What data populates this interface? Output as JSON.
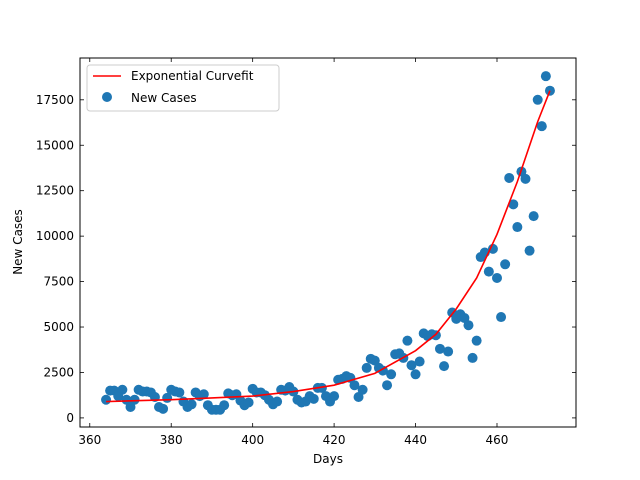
{
  "chart_data": {
    "type": "scatter",
    "title": "",
    "xlabel": "Days",
    "ylabel": "New Cases",
    "xlim": [
      357.6,
      479.4
    ],
    "ylim": [
      -500,
      19800
    ],
    "xticks": [
      360,
      380,
      400,
      420,
      440,
      460
    ],
    "yticks": [
      0,
      2500,
      5000,
      7500,
      10000,
      12500,
      15000,
      17500
    ],
    "ytick_labels": [
      "0",
      "2500",
      "5000",
      "7500",
      "10000",
      "12500",
      "15000",
      "17500"
    ],
    "grid": false,
    "legend_position": "top-left",
    "series": [
      {
        "name": "Exponential Curvefit",
        "kind": "line",
        "color": "#ff0000",
        "x": [
          364,
          380,
          390,
          400,
          410,
          420,
          430,
          440,
          445,
          450,
          455,
          460,
          465,
          470,
          473
        ],
        "y": [
          900,
          1000,
          1100,
          1200,
          1450,
          1800,
          2450,
          3700,
          4600,
          6000,
          7700,
          10100,
          13000,
          16300,
          18000
        ]
      },
      {
        "name": "New Cases",
        "kind": "scatter",
        "color": "#1f77b4",
        "points": [
          [
            364,
            1000
          ],
          [
            365,
            1500
          ],
          [
            366,
            1500
          ],
          [
            367,
            1200
          ],
          [
            368,
            1550
          ],
          [
            369,
            1000
          ],
          [
            370,
            600
          ],
          [
            371,
            1000
          ],
          [
            372,
            1550
          ],
          [
            373,
            1450
          ],
          [
            374,
            1450
          ],
          [
            375,
            1400
          ],
          [
            376,
            1150
          ],
          [
            377,
            600
          ],
          [
            378,
            500
          ],
          [
            379,
            1100
          ],
          [
            380,
            1550
          ],
          [
            381,
            1450
          ],
          [
            382,
            1400
          ],
          [
            383,
            900
          ],
          [
            384,
            600
          ],
          [
            385,
            750
          ],
          [
            386,
            1400
          ],
          [
            387,
            1200
          ],
          [
            388,
            1300
          ],
          [
            389,
            700
          ],
          [
            390,
            450
          ],
          [
            391,
            450
          ],
          [
            392,
            450
          ],
          [
            393,
            700
          ],
          [
            394,
            1350
          ],
          [
            395,
            1250
          ],
          [
            396,
            1300
          ],
          [
            397,
            950
          ],
          [
            398,
            700
          ],
          [
            399,
            850
          ],
          [
            400,
            1600
          ],
          [
            401,
            1400
          ],
          [
            402,
            1400
          ],
          [
            403,
            1250
          ],
          [
            404,
            1000
          ],
          [
            405,
            750
          ],
          [
            406,
            900
          ],
          [
            407,
            1550
          ],
          [
            408,
            1500
          ],
          [
            409,
            1700
          ],
          [
            410,
            1450
          ],
          [
            411,
            1000
          ],
          [
            412,
            850
          ],
          [
            413,
            900
          ],
          [
            414,
            1200
          ],
          [
            415,
            1050
          ],
          [
            416,
            1650
          ],
          [
            417,
            1650
          ],
          [
            418,
            1200
          ],
          [
            419,
            900
          ],
          [
            420,
            1200
          ],
          [
            421,
            2100
          ],
          [
            422,
            2150
          ],
          [
            423,
            2300
          ],
          [
            424,
            2200
          ],
          [
            425,
            1800
          ],
          [
            426,
            1150
          ],
          [
            427,
            1550
          ],
          [
            428,
            2750
          ],
          [
            429,
            3250
          ],
          [
            430,
            3150
          ],
          [
            431,
            2750
          ],
          [
            432,
            2600
          ],
          [
            433,
            1800
          ],
          [
            434,
            2400
          ],
          [
            435,
            3500
          ],
          [
            436,
            3550
          ],
          [
            437,
            3300
          ],
          [
            438,
            4250
          ],
          [
            439,
            2900
          ],
          [
            440,
            2400
          ],
          [
            441,
            3100
          ],
          [
            442,
            4650
          ],
          [
            443,
            4500
          ],
          [
            444,
            4600
          ],
          [
            445,
            4550
          ],
          [
            446,
            3800
          ],
          [
            447,
            2850
          ],
          [
            448,
            3650
          ],
          [
            449,
            5800
          ],
          [
            450,
            5450
          ],
          [
            451,
            5700
          ],
          [
            452,
            5500
          ],
          [
            453,
            5100
          ],
          [
            454,
            3300
          ],
          [
            455,
            4250
          ],
          [
            456,
            8850
          ],
          [
            457,
            9100
          ],
          [
            458,
            8050
          ],
          [
            459,
            9300
          ],
          [
            460,
            7700
          ],
          [
            461,
            5550
          ],
          [
            462,
            8450
          ],
          [
            463,
            13200
          ],
          [
            464,
            11750
          ],
          [
            465,
            10500
          ],
          [
            466,
            13550
          ],
          [
            467,
            13150
          ],
          [
            468,
            9200
          ],
          [
            469,
            11100
          ],
          [
            470,
            17500
          ],
          [
            471,
            16050
          ],
          [
            472,
            18800
          ],
          [
            473,
            18000
          ]
        ]
      }
    ]
  }
}
